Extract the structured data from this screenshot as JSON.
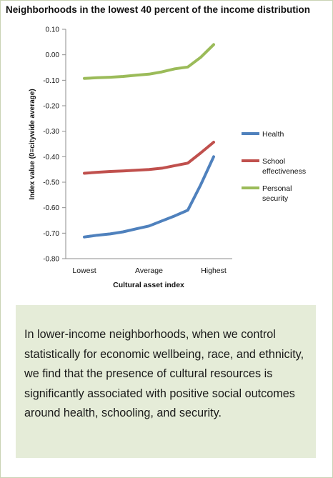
{
  "chart_data": {
    "type": "line",
    "title": "Neighborhoods in the lowest 40 percent of the income distribution",
    "xlabel": "Cultural asset index",
    "ylabel": "Index value (0=citywide average)",
    "x": [
      0,
      1,
      2,
      3,
      4,
      5,
      6,
      7,
      8,
      9,
      10
    ],
    "x_tick_labels": [
      {
        "x": 0,
        "label": "Lowest"
      },
      {
        "x": 5,
        "label": "Average"
      },
      {
        "x": 10,
        "label": "Highest"
      }
    ],
    "y_ticks": [
      "0.10",
      "0.00",
      "-0.10",
      "-0.20",
      "-0.30",
      "-0.40",
      "-0.50",
      "-0.60",
      "-0.70",
      "-0.80"
    ],
    "ylim": [
      -0.8,
      0.1
    ],
    "grid": false,
    "legend_position": "right",
    "series": [
      {
        "name": "Health",
        "color": "#4f81bd",
        "values": [
          -0.715,
          -0.708,
          -0.703,
          -0.695,
          -0.683,
          -0.672,
          -0.652,
          -0.632,
          -0.61,
          -0.51,
          -0.4
        ]
      },
      {
        "name": "School effectiveness",
        "color": "#c0504d",
        "values": [
          -0.465,
          -0.461,
          -0.458,
          -0.456,
          -0.453,
          -0.45,
          -0.445,
          -0.435,
          -0.425,
          -0.385,
          -0.343
        ]
      },
      {
        "name": "Personal security",
        "color": "#9bbb59",
        "values": [
          -0.093,
          -0.09,
          -0.088,
          -0.085,
          -0.08,
          -0.076,
          -0.067,
          -0.055,
          -0.048,
          -0.01,
          0.04
        ]
      }
    ]
  },
  "callout": {
    "text": "In lower-income neighborhoods, when we control statistically for economic wellbeing, race, and ethnicity, we find that the presence of cultural resources is significantly associated with positive social outcomes around health, schooling, and security."
  }
}
